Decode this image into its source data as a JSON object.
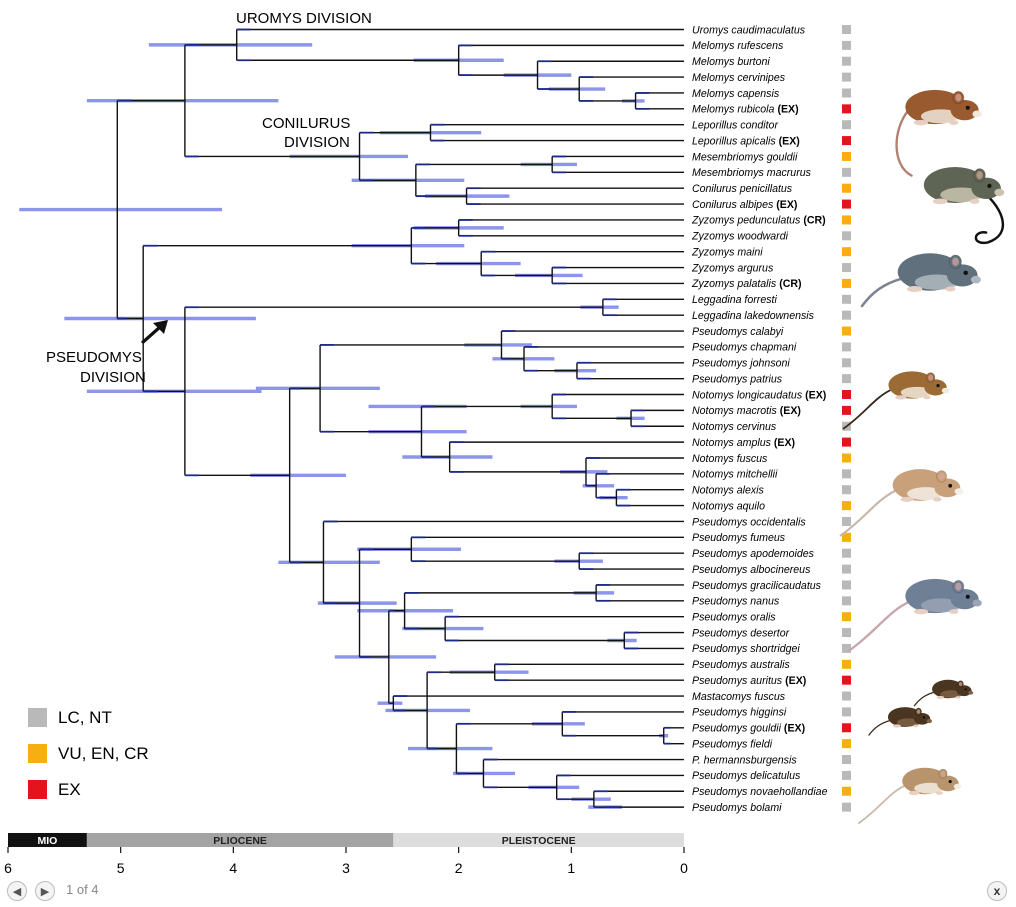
{
  "divisions": {
    "uromys": "UROMYS DIVISION",
    "conilurus_1": "CONILURUS",
    "conilurus_2": "DIVISION",
    "pseudomys_1": "PSEUDOMYS",
    "pseudomys_2": "DIVISION"
  },
  "legend": [
    {
      "label": "LC, NT",
      "color": "#b9b9b9"
    },
    {
      "label": "VU, EN, CR",
      "color": "#f7ae10"
    },
    {
      "label": "EX",
      "color": "#e3141b"
    }
  ],
  "taxa": [
    {
      "name": "Uromys caudimaculatus",
      "status": "LC"
    },
    {
      "name": "Melomys rufescens",
      "status": "LC"
    },
    {
      "name": "Melomys burtoni",
      "status": "LC"
    },
    {
      "name": "Melomys cervinipes",
      "status": "LC"
    },
    {
      "name": "Melomys capensis",
      "status": "LC"
    },
    {
      "name": "Melomys rubicola",
      "tag": "(EX)",
      "status": "EX"
    },
    {
      "name": "Leporillus conditor",
      "status": "LC"
    },
    {
      "name": "Leporillus apicalis",
      "tag": "(EX)",
      "status": "EX"
    },
    {
      "name": "Mesembriomys gouldii",
      "status": "VU"
    },
    {
      "name": "Mesembriomys macrurus",
      "status": "LC"
    },
    {
      "name": "Conilurus penicillatus",
      "status": "VU"
    },
    {
      "name": "Conilurus albipes",
      "tag": "(EX)",
      "status": "EX"
    },
    {
      "name": "Zyzomys pedunculatus",
      "tag": "(CR)",
      "status": "VU"
    },
    {
      "name": "Zyzomys woodwardi",
      "status": "LC"
    },
    {
      "name": "Zyzomys maini",
      "status": "VU"
    },
    {
      "name": "Zyzomys argurus",
      "status": "LC"
    },
    {
      "name": "Zyzomys palatalis",
      "tag": "(CR)",
      "status": "VU"
    },
    {
      "name": "Leggadina forresti",
      "status": "LC"
    },
    {
      "name": "Leggadina lakedownensis",
      "status": "LC"
    },
    {
      "name": "Pseudomys calabyi",
      "status": "VU"
    },
    {
      "name": "Pseudomys chapmani",
      "status": "LC"
    },
    {
      "name": "Pseudomys johnsoni",
      "status": "LC"
    },
    {
      "name": "Pseudomys patrius",
      "status": "LC"
    },
    {
      "name": "Notomys longicaudatus",
      "tag": "(EX)",
      "status": "EX"
    },
    {
      "name": "Notomys macrotis",
      "tag": "(EX)",
      "status": "EX"
    },
    {
      "name": "Notomys cervinus",
      "status": "LC"
    },
    {
      "name": "Notomys amplus",
      "tag": "(EX)",
      "status": "EX"
    },
    {
      "name": "Notomys fuscus",
      "status": "VU"
    },
    {
      "name": "Notomys mitchellii",
      "status": "LC"
    },
    {
      "name": "Notomys alexis",
      "status": "LC"
    },
    {
      "name": "Notomys aquilo",
      "status": "VU"
    },
    {
      "name": "Pseudomys occidentalis",
      "status": "LC"
    },
    {
      "name": "Pseudomys fumeus",
      "status": "VU"
    },
    {
      "name": "Pseudomys apodemoides",
      "status": "LC"
    },
    {
      "name": "Pseudomys albocinereus",
      "status": "LC"
    },
    {
      "name": "Pseudomys gracilicaudatus",
      "status": "LC"
    },
    {
      "name": "Pseudomys nanus",
      "status": "LC"
    },
    {
      "name": "Pseudomys oralis",
      "status": "VU"
    },
    {
      "name": "Pseudomys desertor",
      "status": "LC"
    },
    {
      "name": "Pseudomys shortridgei",
      "status": "LC"
    },
    {
      "name": "Pseudomys australis",
      "status": "VU"
    },
    {
      "name": "Pseudomys auritus",
      "tag": "(EX)",
      "status": "EX"
    },
    {
      "name": "Mastacomys fuscus",
      "status": "LC"
    },
    {
      "name": "Pseudomys higginsi",
      "status": "LC"
    },
    {
      "name": "Pseudomys gouldii",
      "tag": "(EX)",
      "status": "EX"
    },
    {
      "name": "Pseudomys fieldi",
      "status": "VU"
    },
    {
      "name": "P. hermannsburgensis",
      "status": "LC"
    },
    {
      "name": "Pseudomys delicatulus",
      "status": "LC"
    },
    {
      "name": "Pseudomys novaehollandiae",
      "status": "VU"
    },
    {
      "name": "Pseudomys bolami",
      "status": "LC"
    }
  ],
  "status_colors": {
    "LC": "#b9b9b9",
    "VU": "#f7ae10",
    "EX": "#e3141b"
  },
  "timescale": {
    "epochs": [
      {
        "label": "MIO",
        "from": 6,
        "to": 5.3,
        "color": "#111111",
        "text_color": "#ffffff"
      },
      {
        "label": "PLIOCENE",
        "from": 5.3,
        "to": 2.58,
        "color": "#a3a3a3",
        "text_color": "#222222"
      },
      {
        "label": "PLEISTOCENE",
        "from": 2.58,
        "to": 0,
        "color": "#dddddd",
        "text_color": "#222222"
      }
    ],
    "ticks": [
      "6",
      "5",
      "4",
      "3",
      "2",
      "1",
      "0"
    ]
  },
  "nodes": [
    {
      "id": "root",
      "parent": null,
      "age": 5.03,
      "ci": [
        5.9,
        4.1
      ]
    },
    {
      "id": "uromys_conil",
      "parent": "root",
      "age": 4.43,
      "ci": [
        5.3,
        3.6
      ]
    },
    {
      "id": "uromys_div",
      "parent": "uromys_conil",
      "age": 3.97,
      "ci": [
        4.75,
        3.3
      ]
    },
    {
      "id": "melomys",
      "parent": "uromys_div",
      "age": 2.0,
      "ci": [
        2.4,
        1.6
      ]
    },
    {
      "id": "mel_a",
      "parent": "melomys",
      "age": 1.3,
      "ci": [
        1.6,
        1.0
      ]
    },
    {
      "id": "mel_b",
      "parent": "mel_a",
      "age": 0.93,
      "ci": [
        1.2,
        0.7
      ]
    },
    {
      "id": "mel_c",
      "parent": "mel_b",
      "age": 0.43,
      "ci": [
        0.55,
        0.35
      ]
    },
    {
      "id": "conil_div",
      "parent": "uromys_conil",
      "age": 2.88,
      "ci": [
        3.5,
        2.45
      ]
    },
    {
      "id": "leporillus",
      "parent": "conil_div",
      "age": 2.25,
      "ci": [
        2.7,
        1.8
      ]
    },
    {
      "id": "mes_conil",
      "parent": "conil_div",
      "age": 2.38,
      "ci": [
        2.95,
        1.95
      ]
    },
    {
      "id": "mesembriomys",
      "parent": "mes_conil",
      "age": 1.17,
      "ci": [
        1.45,
        0.95
      ]
    },
    {
      "id": "conilurus",
      "parent": "mes_conil",
      "age": 1.93,
      "ci": [
        2.3,
        1.55
      ]
    },
    {
      "id": "ps_zyz",
      "parent": "root",
      "age": 4.8,
      "ci": [
        5.5,
        3.8
      ]
    },
    {
      "id": "zyzomys",
      "parent": "ps_zyz",
      "age": 2.42,
      "ci": [
        2.95,
        1.95
      ]
    },
    {
      "id": "zyz_a",
      "parent": "zyzomys",
      "age": 2.0,
      "ci": [
        2.4,
        1.6
      ]
    },
    {
      "id": "zyz_b",
      "parent": "zyzomys",
      "age": 1.8,
      "ci": [
        2.2,
        1.45
      ]
    },
    {
      "id": "zyz_c",
      "parent": "zyz_b",
      "age": 1.17,
      "ci": [
        1.5,
        0.9
      ]
    },
    {
      "id": "pseudomys_div",
      "parent": "ps_zyz",
      "age": 4.43,
      "ci": [
        5.3,
        3.75
      ]
    },
    {
      "id": "leggadina",
      "parent": "pseudomys_div",
      "age": 0.72,
      "ci": [
        0.92,
        0.58
      ]
    },
    {
      "id": "ps_core",
      "parent": "pseudomys_div",
      "age": 3.5,
      "ci": [
        3.85,
        3.0
      ]
    },
    {
      "id": "ps_not",
      "parent": "ps_core",
      "age": 3.23,
      "ci": [
        3.8,
        2.7
      ]
    },
    {
      "id": "calabyi_grp",
      "parent": "ps_not",
      "age": 1.62,
      "ci": [
        1.95,
        1.35
      ]
    },
    {
      "id": "chap_grp",
      "parent": "calabyi_grp",
      "age": 1.42,
      "ci": [
        1.7,
        1.15
      ]
    },
    {
      "id": "johns_grp",
      "parent": "chap_grp",
      "age": 0.95,
      "ci": [
        1.15,
        0.78
      ]
    },
    {
      "id": "notomys",
      "parent": "ps_not",
      "age": 2.33,
      "ci": [
        2.8,
        1.93
      ]
    },
    {
      "id": "not_a",
      "parent": "notomys",
      "age": 2.33,
      "ci": [
        2.8,
        1.93
      ]
    },
    {
      "id": "not_a1",
      "parent": "not_a",
      "age": 1.17,
      "ci": [
        1.45,
        0.95
      ]
    },
    {
      "id": "not_a2",
      "parent": "not_a1",
      "age": 0.47,
      "ci": [
        0.6,
        0.35
      ]
    },
    {
      "id": "not_b",
      "parent": "notomys",
      "age": 2.08,
      "ci": [
        2.5,
        1.7
      ]
    },
    {
      "id": "not_b1",
      "parent": "not_b",
      "age": 0.87,
      "ci": [
        1.1,
        0.68
      ]
    },
    {
      "id": "not_b2",
      "parent": "not_b1",
      "age": 0.78,
      "ci": [
        0.9,
        0.62
      ]
    },
    {
      "id": "not_b3",
      "parent": "not_b2",
      "age": 0.6,
      "ci": [
        0.75,
        0.5
      ]
    },
    {
      "id": "ps_main",
      "parent": "ps_core",
      "age": 3.2,
      "ci": [
        3.6,
        2.7
      ]
    },
    {
      "id": "ps_m2",
      "parent": "ps_main",
      "age": 2.88,
      "ci": [
        3.25,
        2.55
      ]
    },
    {
      "id": "fumeus_grp",
      "parent": "ps_m2",
      "age": 2.42,
      "ci": [
        2.9,
        1.98
      ]
    },
    {
      "id": "apod_grp",
      "parent": "fumeus_grp",
      "age": 0.93,
      "ci": [
        1.15,
        0.72
      ]
    },
    {
      "id": "ps_m3",
      "parent": "ps_m2",
      "age": 2.62,
      "ci": [
        3.1,
        2.2
      ]
    },
    {
      "id": "grac_big",
      "parent": "ps_m3",
      "age": 2.48,
      "ci": [
        2.9,
        2.05
      ]
    },
    {
      "id": "grac_grp",
      "parent": "grac_big",
      "age": 0.78,
      "ci": [
        0.98,
        0.62
      ]
    },
    {
      "id": "oralis_grp",
      "parent": "grac_big",
      "age": 2.12,
      "ci": [
        2.5,
        1.78
      ]
    },
    {
      "id": "des_grp",
      "parent": "oralis_grp",
      "age": 0.53,
      "ci": [
        0.68,
        0.42
      ]
    },
    {
      "id": "ps_m4",
      "parent": "ps_m3",
      "age": 2.58,
      "ci": [
        2.72,
        2.5
      ]
    },
    {
      "id": "ps_m5",
      "parent": "ps_m4",
      "age": 2.28,
      "ci": [
        2.65,
        1.9
      ]
    },
    {
      "id": "aust_grp",
      "parent": "ps_m5",
      "age": 1.68,
      "ci": [
        2.08,
        1.38
      ]
    },
    {
      "id": "ps_m6",
      "parent": "ps_m5",
      "age": 2.02,
      "ci": [
        2.45,
        1.7
      ]
    },
    {
      "id": "higg_grp",
      "parent": "ps_m6",
      "age": 1.08,
      "ci": [
        1.35,
        0.88
      ]
    },
    {
      "id": "gould_grp",
      "parent": "higg_grp",
      "age": 0.18,
      "ci": [
        0.22,
        0.14
      ]
    },
    {
      "id": "delic_big",
      "parent": "ps_m6",
      "age": 1.78,
      "ci": [
        2.05,
        1.5
      ]
    },
    {
      "id": "delic_grp",
      "parent": "delic_big",
      "age": 1.13,
      "ci": [
        1.38,
        0.93
      ]
    },
    {
      "id": "nov_grp",
      "parent": "delic_grp",
      "age": 0.8,
      "ci": [
        1.0,
        0.65
      ]
    },
    {
      "id": "bol_grp",
      "parent": "nov_grp",
      "age": 0.7,
      "ci": [
        0.85,
        0.55
      ]
    }
  ],
  "leaf_parents": [
    "uromys_div",
    "melomys",
    "mel_a",
    "mel_b",
    "mel_c",
    "mel_c",
    "leporillus",
    "leporillus",
    "mesembriomys",
    "mesembriomys",
    "conilurus",
    "conilurus",
    "zyz_a",
    "zyz_a",
    "zyz_b",
    "zyz_c",
    "zyz_c",
    "leggadina",
    "leggadina",
    "calabyi_grp",
    "chap_grp",
    "johns_grp",
    "johns_grp",
    "not_a1",
    "not_a2",
    "not_a2",
    "not_b",
    "not_b1",
    "not_b2",
    "not_b3",
    "not_b3",
    "ps_main",
    "fumeus_grp",
    "apod_grp",
    "apod_grp",
    "grac_grp",
    "grac_grp",
    "oralis_grp",
    "des_grp",
    "des_grp",
    "aust_grp",
    "aust_grp",
    "ps_m4",
    "higg_grp",
    "gould_grp",
    "gould_grp",
    "delic_big",
    "delic_grp",
    "nov_grp",
    "bol_grp"
  ],
  "illustrations": [
    {
      "id": "uromys",
      "body": "#9a5a30",
      "belly": "#f0e8dc",
      "tail": "#b08070",
      "tail_style": "long-curl"
    },
    {
      "id": "leporillus",
      "body": "#5e6554",
      "belly": "#c9c4b0",
      "tail": "#111111",
      "tail_style": "curl"
    },
    {
      "id": "zyzomys",
      "body": "#60707c",
      "belly": "#b0b8bf",
      "tail": "#7a8590",
      "tail_style": "short"
    },
    {
      "id": "notomys",
      "body": "#9b6a35",
      "belly": "#f1e9dc",
      "tail": "#3b2a1c",
      "tail_style": "long"
    },
    {
      "id": "pseudomys",
      "body": "#c8a07a",
      "belly": "#f5efe6",
      "tail": "#c7b6aa",
      "tail_style": "long"
    },
    {
      "id": "mastacomys",
      "body": "#6f7f96",
      "belly": "#9aa5b5",
      "tail": "#c7a6ac",
      "tail_style": "long"
    },
    {
      "id": "gouldii_pair",
      "body": "#4a3520",
      "belly": "#7e6246",
      "tail": "#3a2a1a",
      "tail_style": "short"
    },
    {
      "id": "delicatulus",
      "body": "#b8946c",
      "belly": "#f3ece1",
      "tail": "#c9b9ad",
      "tail_style": "long"
    }
  ],
  "navigation": {
    "prev": "previous",
    "next": "next",
    "counter": "1 of 4",
    "close": "x"
  }
}
